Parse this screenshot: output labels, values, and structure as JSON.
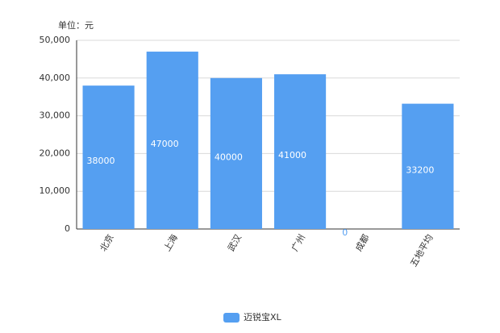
{
  "chart_data": {
    "type": "bar",
    "y_label": "单位：元",
    "categories": [
      "北京",
      "上海",
      "武汉",
      "广州",
      "成都",
      "五地平均"
    ],
    "series": [
      {
        "name": "迈锐宝XL",
        "color": "#559ff1",
        "values": [
          38000,
          47000,
          40000,
          41000,
          0,
          33200
        ]
      }
    ],
    "ylim": [
      0,
      50000
    ],
    "yticks": [
      0,
      {
        "value": 10000,
        "label": "10,000"
      },
      {
        "value": 20000,
        "label": "20,000"
      },
      {
        "value": 30000,
        "label": "30,000"
      },
      {
        "value": 40000,
        "label": "40,000"
      },
      {
        "value": 50000,
        "label": "50,000"
      }
    ],
    "grid": true
  }
}
